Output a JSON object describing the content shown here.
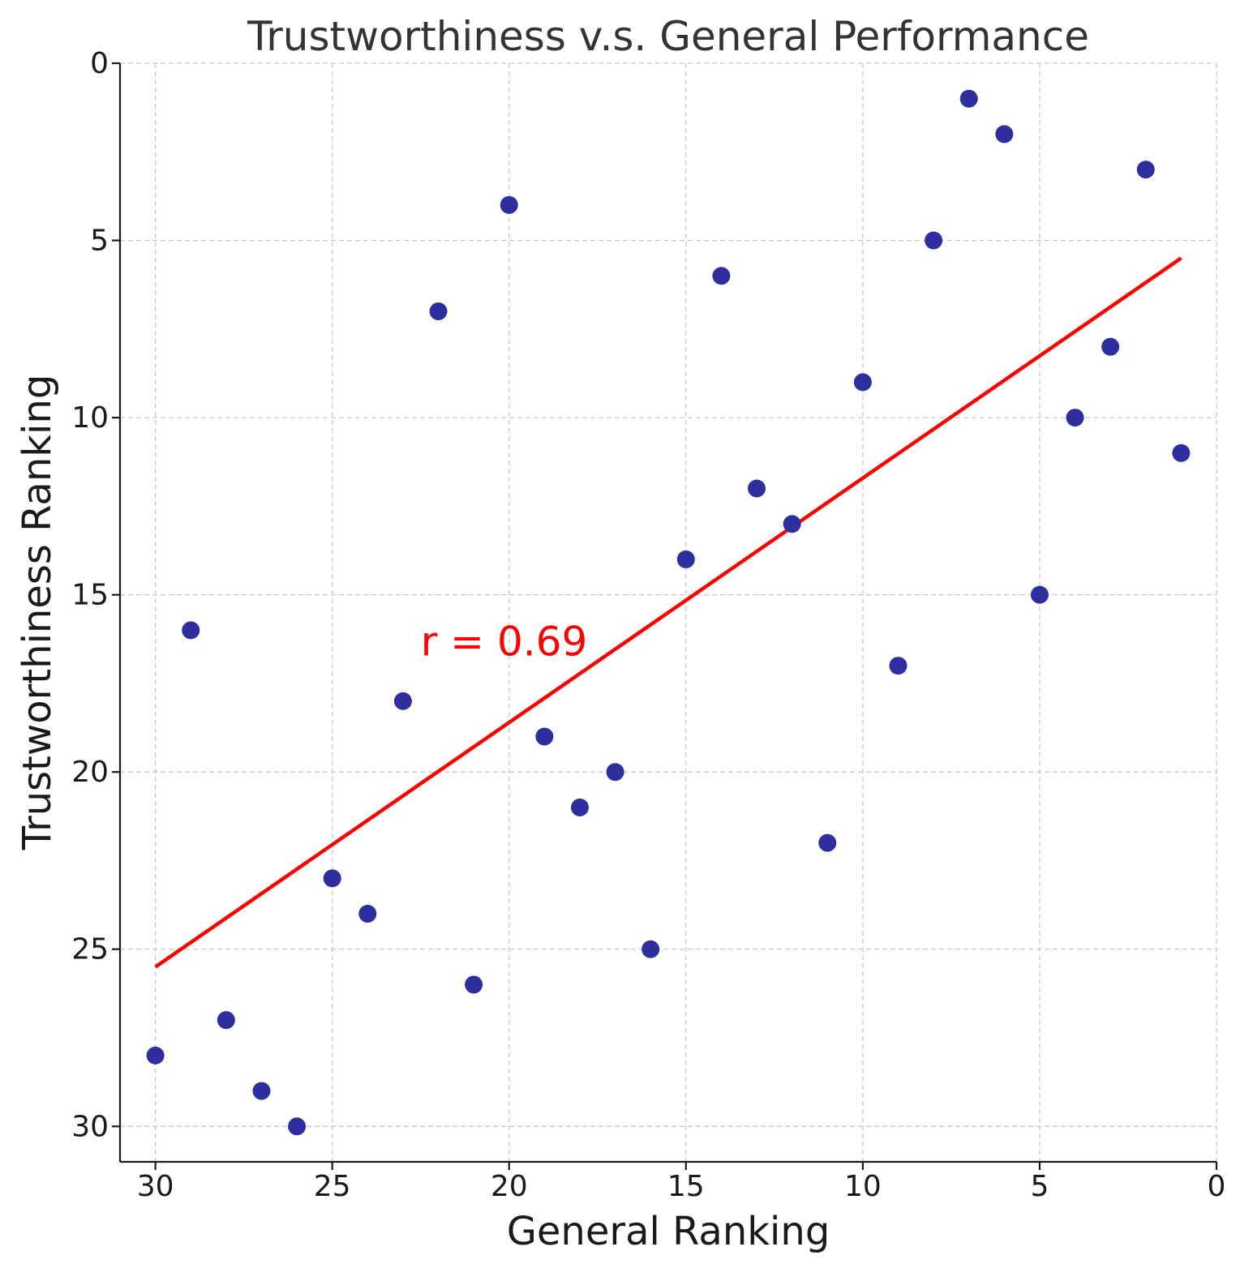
{
  "chart_data": {
    "type": "scatter",
    "title": "Trustworthiness v.s. General Performance",
    "xlabel": "General Ranking",
    "ylabel": "Trustworthiness Ranking",
    "xlim": [
      31,
      0
    ],
    "ylim": [
      31,
      0
    ],
    "x_inverted": true,
    "y_inverted": true,
    "xticks": [
      30,
      25,
      20,
      15,
      10,
      5,
      0
    ],
    "yticks": [
      0,
      5,
      10,
      15,
      20,
      25,
      30
    ],
    "grid": true,
    "point_color": "#2e2e9e",
    "line_color": "#ff0000",
    "points": [
      {
        "x": 1,
        "y": 11
      },
      {
        "x": 2,
        "y": 3
      },
      {
        "x": 3,
        "y": 8
      },
      {
        "x": 4,
        "y": 10
      },
      {
        "x": 5,
        "y": 15
      },
      {
        "x": 6,
        "y": 2
      },
      {
        "x": 7,
        "y": 1
      },
      {
        "x": 8,
        "y": 5
      },
      {
        "x": 9,
        "y": 17
      },
      {
        "x": 10,
        "y": 9
      },
      {
        "x": 11,
        "y": 22
      },
      {
        "x": 12,
        "y": 13
      },
      {
        "x": 13,
        "y": 12
      },
      {
        "x": 14,
        "y": 6
      },
      {
        "x": 15,
        "y": 14
      },
      {
        "x": 16,
        "y": 25
      },
      {
        "x": 17,
        "y": 20
      },
      {
        "x": 18,
        "y": 21
      },
      {
        "x": 19,
        "y": 19
      },
      {
        "x": 20,
        "y": 4
      },
      {
        "x": 21,
        "y": 26
      },
      {
        "x": 22,
        "y": 7
      },
      {
        "x": 23,
        "y": 18
      },
      {
        "x": 24,
        "y": 24
      },
      {
        "x": 25,
        "y": 23
      },
      {
        "x": 26,
        "y": 30
      },
      {
        "x": 27,
        "y": 29
      },
      {
        "x": 28,
        "y": 27
      },
      {
        "x": 29,
        "y": 16
      },
      {
        "x": 30,
        "y": 28
      }
    ],
    "fit_line": {
      "x1": 30,
      "y1": 25.5,
      "x2": 1,
      "y2": 5.5
    },
    "annotations": [
      {
        "text": "r = 0.69",
        "x": 22.5,
        "y": 16.3,
        "color": "#ff0000"
      }
    ]
  }
}
